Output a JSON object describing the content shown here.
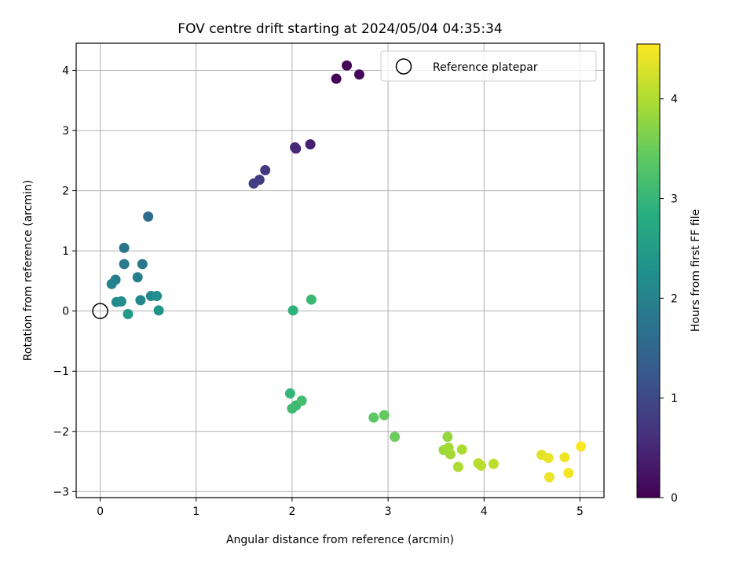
{
  "chart_data": {
    "type": "scatter",
    "title": "FOV centre drift starting at 2024/05/04 04:35:34",
    "xlabel": "Angular distance from reference (arcmin)",
    "ylabel": "Rotation from reference (arcmin)",
    "xlim": [
      -0.25,
      5.25
    ],
    "ylim": [
      -3.1,
      4.45
    ],
    "xticks": [
      0,
      1,
      2,
      3,
      4,
      5
    ],
    "yticks": [
      -3,
      -2,
      -1,
      0,
      1,
      2,
      3,
      4
    ],
    "grid": true,
    "legend": {
      "label": "Reference platepar",
      "placement": "top-right"
    },
    "reference_point": {
      "x": 0,
      "y": 0
    },
    "colorbar": {
      "label": "Hours from first FF file",
      "range": [
        0,
        4.55
      ],
      "ticks": [
        0,
        1,
        2,
        3,
        4
      ],
      "colormap": "viridis"
    },
    "points": [
      {
        "x": 2.46,
        "y": 3.86,
        "h": 0.0
      },
      {
        "x": 2.57,
        "y": 4.08,
        "h": 0.05
      },
      {
        "x": 2.7,
        "y": 3.93,
        "h": 0.1
      },
      {
        "x": 2.19,
        "y": 2.77,
        "h": 0.4
      },
      {
        "x": 2.04,
        "y": 2.7,
        "h": 0.45
      },
      {
        "x": 2.03,
        "y": 2.72,
        "h": 0.5
      },
      {
        "x": 1.72,
        "y": 2.34,
        "h": 0.75
      },
      {
        "x": 1.66,
        "y": 2.18,
        "h": 0.8
      },
      {
        "x": 1.6,
        "y": 2.12,
        "h": 0.85
      },
      {
        "x": 0.5,
        "y": 1.57,
        "h": 1.6
      },
      {
        "x": 0.25,
        "y": 1.05,
        "h": 1.75
      },
      {
        "x": 0.44,
        "y": 0.78,
        "h": 1.8
      },
      {
        "x": 0.25,
        "y": 0.78,
        "h": 1.85
      },
      {
        "x": 0.39,
        "y": 0.56,
        "h": 1.9
      },
      {
        "x": 0.16,
        "y": 0.52,
        "h": 1.95
      },
      {
        "x": 0.12,
        "y": 0.45,
        "h": 2.0
      },
      {
        "x": 0.42,
        "y": 0.18,
        "h": 2.05
      },
      {
        "x": 0.53,
        "y": 0.25,
        "h": 2.1
      },
      {
        "x": 0.17,
        "y": 0.15,
        "h": 2.15
      },
      {
        "x": 0.22,
        "y": 0.16,
        "h": 2.2
      },
      {
        "x": 0.59,
        "y": 0.25,
        "h": 2.25
      },
      {
        "x": 0.61,
        "y": 0.01,
        "h": 2.35
      },
      {
        "x": 0.29,
        "y": -0.05,
        "h": 2.45
      },
      {
        "x": 2.01,
        "y": 0.01,
        "h": 2.9
      },
      {
        "x": 2.2,
        "y": 0.19,
        "h": 3.05
      },
      {
        "x": 1.98,
        "y": -1.37,
        "h": 3.0
      },
      {
        "x": 2.04,
        "y": -1.57,
        "h": 3.05
      },
      {
        "x": 2.0,
        "y": -1.62,
        "h": 3.1
      },
      {
        "x": 2.1,
        "y": -1.49,
        "h": 3.15
      },
      {
        "x": 2.85,
        "y": -1.77,
        "h": 3.4
      },
      {
        "x": 2.96,
        "y": -1.73,
        "h": 3.45
      },
      {
        "x": 3.07,
        "y": -2.09,
        "h": 3.5
      },
      {
        "x": 3.62,
        "y": -2.09,
        "h": 3.8
      },
      {
        "x": 3.58,
        "y": -2.31,
        "h": 3.85
      },
      {
        "x": 3.63,
        "y": -2.27,
        "h": 3.9
      },
      {
        "x": 3.65,
        "y": -2.38,
        "h": 3.92
      },
      {
        "x": 3.77,
        "y": -2.3,
        "h": 3.95
      },
      {
        "x": 3.73,
        "y": -2.59,
        "h": 3.97
      },
      {
        "x": 3.94,
        "y": -2.53,
        "h": 4.05
      },
      {
        "x": 3.97,
        "y": -2.57,
        "h": 4.07
      },
      {
        "x": 4.1,
        "y": -2.54,
        "h": 4.1
      },
      {
        "x": 4.6,
        "y": -2.39,
        "h": 4.35
      },
      {
        "x": 4.67,
        "y": -2.44,
        "h": 4.4
      },
      {
        "x": 4.68,
        "y": -2.76,
        "h": 4.42
      },
      {
        "x": 4.84,
        "y": -2.43,
        "h": 4.45
      },
      {
        "x": 4.88,
        "y": -2.69,
        "h": 4.48
      },
      {
        "x": 5.01,
        "y": -2.25,
        "h": 4.53
      }
    ]
  }
}
